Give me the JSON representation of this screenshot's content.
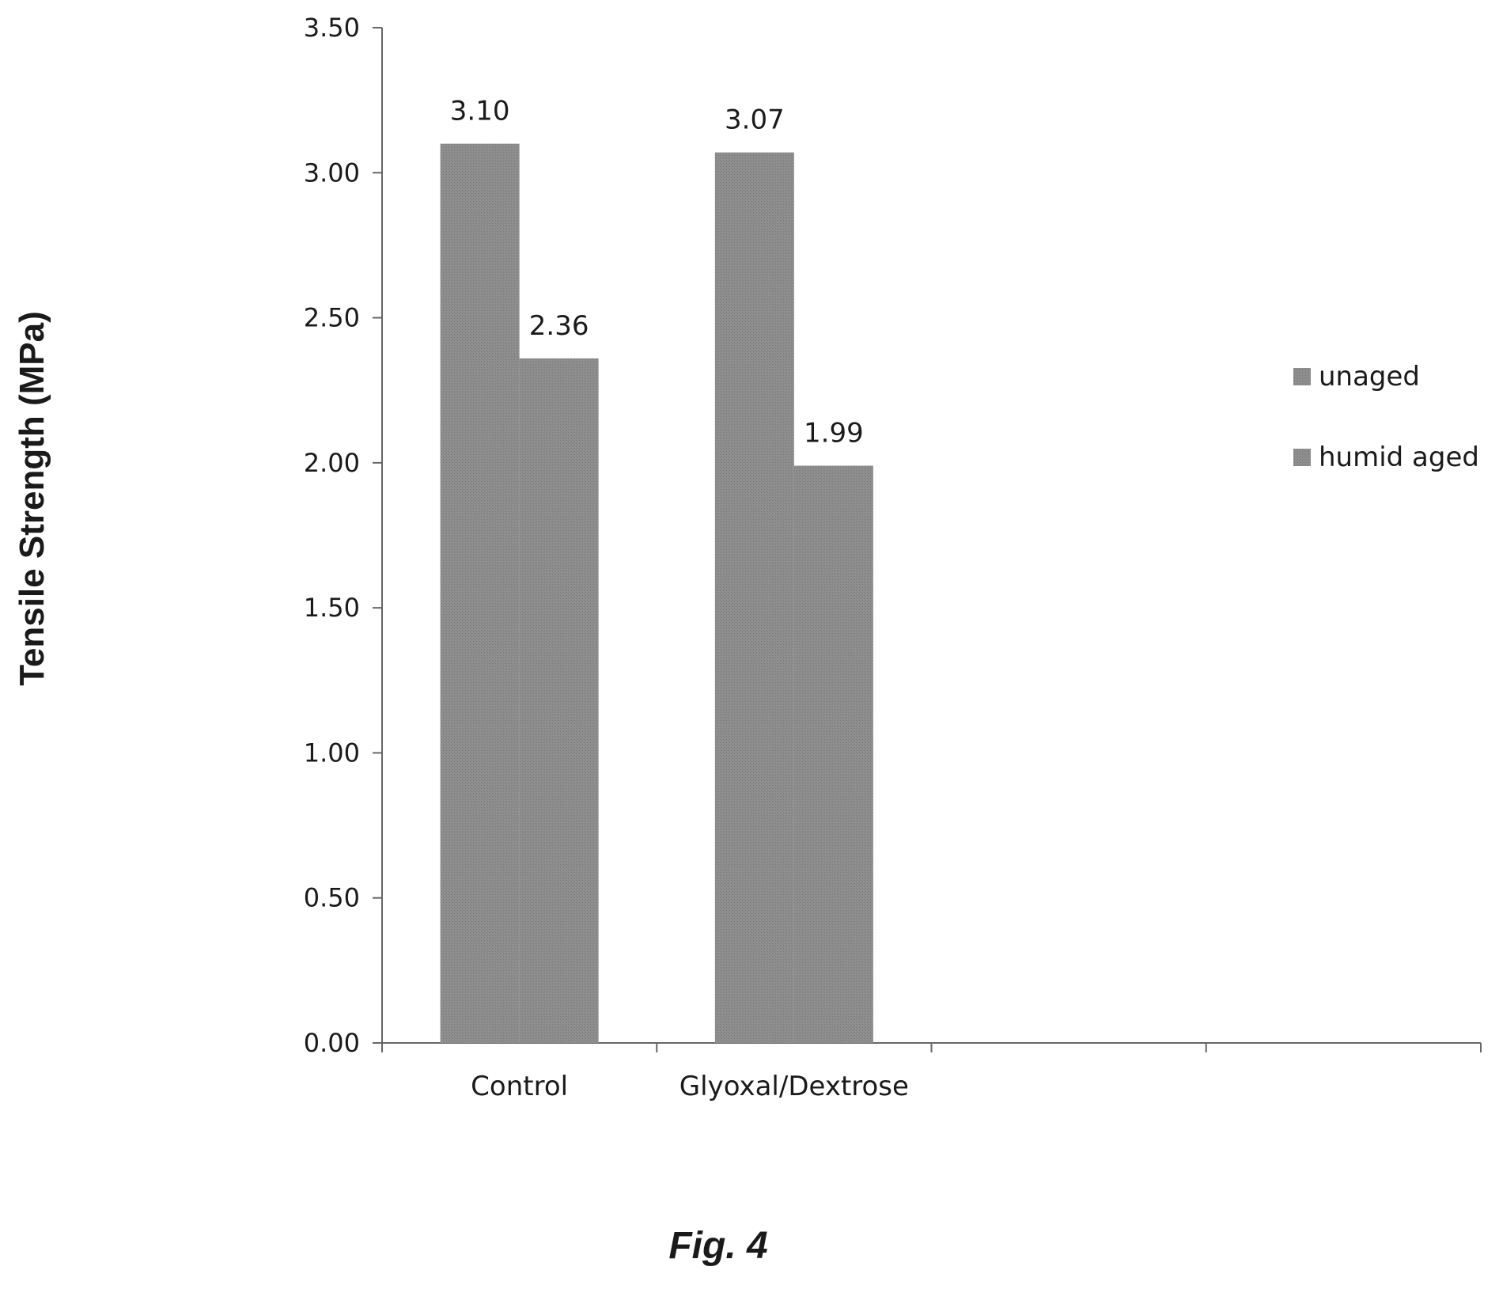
{
  "chart_data": {
    "type": "bar",
    "categories": [
      "Control",
      "Glyoxal/Dextrose"
    ],
    "series": [
      {
        "name": "unaged",
        "values": [
          3.1,
          3.07
        ],
        "labels": [
          "3.10",
          "3.07"
        ],
        "color": "#8a8a8a"
      },
      {
        "name": "humid aged",
        "values": [
          2.36,
          1.99
        ],
        "labels": [
          "2.36",
          "1.99"
        ],
        "color": "#8a8a8a"
      }
    ],
    "ylabel": "Tensile Strength (MPa)",
    "xlabel": "",
    "ylim": [
      0,
      3.5
    ],
    "yticks": [
      "0.00",
      "0.50",
      "1.00",
      "1.50",
      "2.00",
      "2.50",
      "3.00",
      "3.50"
    ],
    "x_slots": 4,
    "grid": false,
    "legend_position": "right"
  },
  "caption": "Fig. 4"
}
